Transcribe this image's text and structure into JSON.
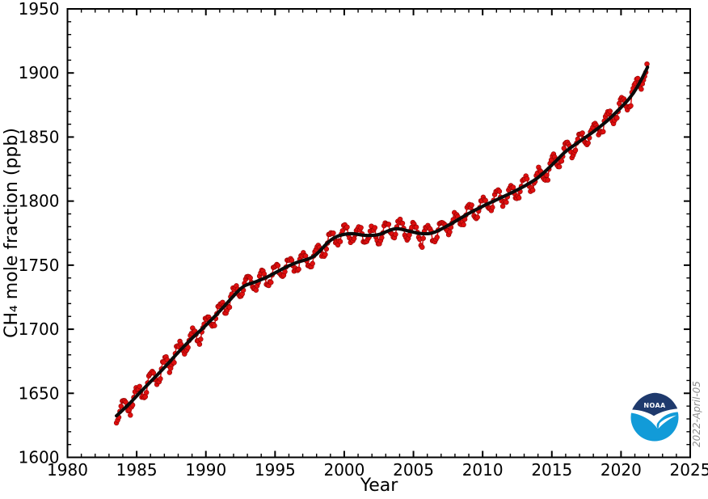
{
  "chart_data": {
    "type": "scatter",
    "title": "",
    "xlabel": "Year",
    "ylabel": "CH₄ mole fraction (ppb)",
    "xlim": [
      1980,
      2025
    ],
    "ylim": [
      1600,
      1950
    ],
    "x_major_ticks": [
      1980,
      1985,
      1990,
      1995,
      2000,
      2005,
      2010,
      2015,
      2020,
      2025
    ],
    "y_major_ticks": [
      1600,
      1650,
      1700,
      1750,
      1800,
      1850,
      1900,
      1950
    ],
    "x_minor_step": 1,
    "y_minor_step": 10,
    "grid": false,
    "series": [
      {
        "name": "global-monthly-mean-ch4",
        "style": "scatter-line",
        "color": "#df0f0f",
        "edge_color": "#8a0000",
        "marker_radius": 2.95,
        "line_width": 1.5,
        "x_start": 1983.5417,
        "x_end": 2021.9583,
        "x_step_years": 0.0833333,
        "seasonal_amplitude_ppb": 5.8,
        "seasonal_phase": 0.21,
        "seasonal_shape": "flattened-sine",
        "noise_ppb": 2.0,
        "noise_seed": 77
      },
      {
        "name": "deseasonalized-trend",
        "style": "line",
        "color": "#0b0b0b",
        "line_width": 4.1,
        "knots": [
          [
            1983.6,
            1633
          ],
          [
            1984.0,
            1637
          ],
          [
            1984.5,
            1642
          ],
          [
            1985.0,
            1648
          ],
          [
            1986.0,
            1659
          ],
          [
            1987.0,
            1670
          ],
          [
            1988.0,
            1682
          ],
          [
            1989.0,
            1693
          ],
          [
            1990.0,
            1703
          ],
          [
            1991.0,
            1714
          ],
          [
            1992.0,
            1726
          ],
          [
            1992.7,
            1734
          ],
          [
            1993.5,
            1736.5
          ],
          [
            1994.5,
            1741
          ],
          [
            1995.5,
            1747
          ],
          [
            1996.5,
            1752
          ],
          [
            1997.5,
            1755
          ],
          [
            1998.0,
            1758
          ],
          [
            1998.8,
            1768
          ],
          [
            1999.5,
            1773
          ],
          [
            2000.5,
            1775
          ],
          [
            2001.5,
            1773
          ],
          [
            2002.5,
            1773.5
          ],
          [
            2003.3,
            1777.5
          ],
          [
            2003.8,
            1779
          ],
          [
            2004.5,
            1777
          ],
          [
            2005.5,
            1774.5
          ],
          [
            2006.3,
            1774.5
          ],
          [
            2007.0,
            1778
          ],
          [
            2008.0,
            1784
          ],
          [
            2009.0,
            1790.5
          ],
          [
            2010.0,
            1796
          ],
          [
            2011.0,
            1801
          ],
          [
            2012.0,
            1806
          ],
          [
            2013.0,
            1811.5
          ],
          [
            2014.0,
            1818
          ],
          [
            2015.0,
            1828
          ],
          [
            2016.0,
            1839
          ],
          [
            2017.0,
            1846.5
          ],
          [
            2018.0,
            1854
          ],
          [
            2019.0,
            1862.5
          ],
          [
            2020.0,
            1873
          ],
          [
            2020.7,
            1881
          ],
          [
            2021.3,
            1891
          ],
          [
            2021.96,
            1905.5
          ]
        ]
      }
    ]
  },
  "annotations": {
    "date_stamp": "2022-April-05"
  },
  "logo": {
    "name": "NOAA",
    "text": "NOAA",
    "navy": "#1f3a6d",
    "cyan": "#129bd8"
  },
  "colors": {
    "frame": "#000000",
    "tick_label": "#000000",
    "stamp": "#8e8e8e"
  }
}
